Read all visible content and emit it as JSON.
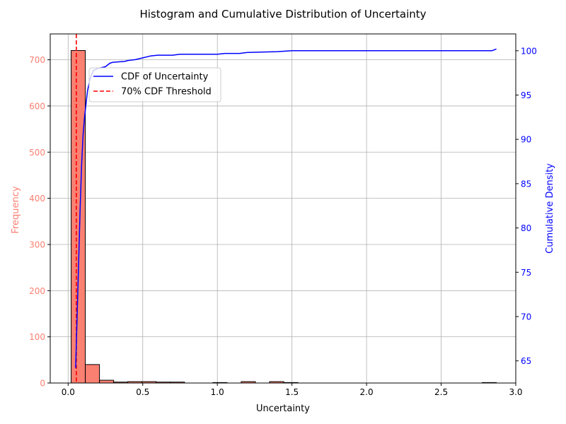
{
  "chart_data": {
    "type": "bar",
    "title": "Histogram and Cumulative Distribution of Uncertainty",
    "xlabel": "Uncertainty",
    "ylabel_left": "Frequency",
    "ylabel_right": "Cumulative Density",
    "xlim": [
      -0.12,
      3.0
    ],
    "ylim_left": [
      0,
      756
    ],
    "ylim_right": [
      62.5,
      101.9
    ],
    "x_ticks": [
      0.0,
      0.5,
      1.0,
      1.5,
      2.0,
      2.5,
      3.0
    ],
    "x_tick_labels": [
      "0.0",
      "0.5",
      "1.0",
      "1.5",
      "2.0",
      "2.5",
      "3.0"
    ],
    "y_left_ticks": [
      0,
      100,
      200,
      300,
      400,
      500,
      600,
      700
    ],
    "y_left_tick_labels": [
      "0",
      "100",
      "200",
      "300",
      "400",
      "500",
      "600",
      "700"
    ],
    "y_right_ticks": [
      65,
      70,
      75,
      80,
      85,
      90,
      95,
      100
    ],
    "y_right_tick_labels": [
      "65",
      "70",
      "75",
      "80",
      "85",
      "90",
      "95",
      "100"
    ],
    "grid": true,
    "legend_placement": "upper-left",
    "histogram": {
      "bin_edges": [
        0.02,
        0.115,
        0.21,
        0.305,
        0.4,
        0.495,
        0.59,
        0.685,
        0.78,
        0.875,
        0.97,
        1.065,
        1.16,
        1.255,
        1.35,
        1.445,
        1.54,
        1.635,
        1.73,
        1.825,
        1.92,
        2.015,
        2.11,
        2.205,
        2.3,
        2.395,
        2.49,
        2.585,
        2.68,
        2.775,
        2.87
      ],
      "counts": [
        720,
        40,
        6,
        2,
        3,
        3,
        2,
        2,
        0,
        0,
        1,
        0,
        3,
        0,
        3,
        1,
        0,
        0,
        0,
        0,
        0,
        0,
        0,
        0,
        0,
        0,
        0,
        0,
        0,
        1
      ],
      "color": "#fa8072",
      "edge_color": "#000000"
    },
    "series": [
      {
        "name": "CDF of Uncertainty",
        "color": "#0000ff",
        "x": [
          0.05,
          0.06,
          0.07,
          0.08,
          0.09,
          0.1,
          0.11,
          0.12,
          0.13,
          0.15,
          0.17,
          0.2,
          0.25,
          0.28,
          0.3,
          0.38,
          0.4,
          0.45,
          0.5,
          0.55,
          0.6,
          0.7,
          0.75,
          1.0,
          1.05,
          1.15,
          1.2,
          1.4,
          1.5,
          1.55,
          2.0,
          2.5,
          2.84,
          2.87
        ],
        "y": [
          64.2,
          70.0,
          76.0,
          82.0,
          87.0,
          90.5,
          92.5,
          94.0,
          95.5,
          97.0,
          97.8,
          98.0,
          98.2,
          98.6,
          98.7,
          98.8,
          98.9,
          99.0,
          99.2,
          99.4,
          99.5,
          99.5,
          99.6,
          99.6,
          99.7,
          99.7,
          99.8,
          99.9,
          100.0,
          100.0,
          100.0,
          100.0,
          100.0,
          100.2
        ]
      }
    ],
    "threshold": {
      "name": "70% CDF Threshold",
      "x": 0.055,
      "color": "#ff0000"
    }
  }
}
